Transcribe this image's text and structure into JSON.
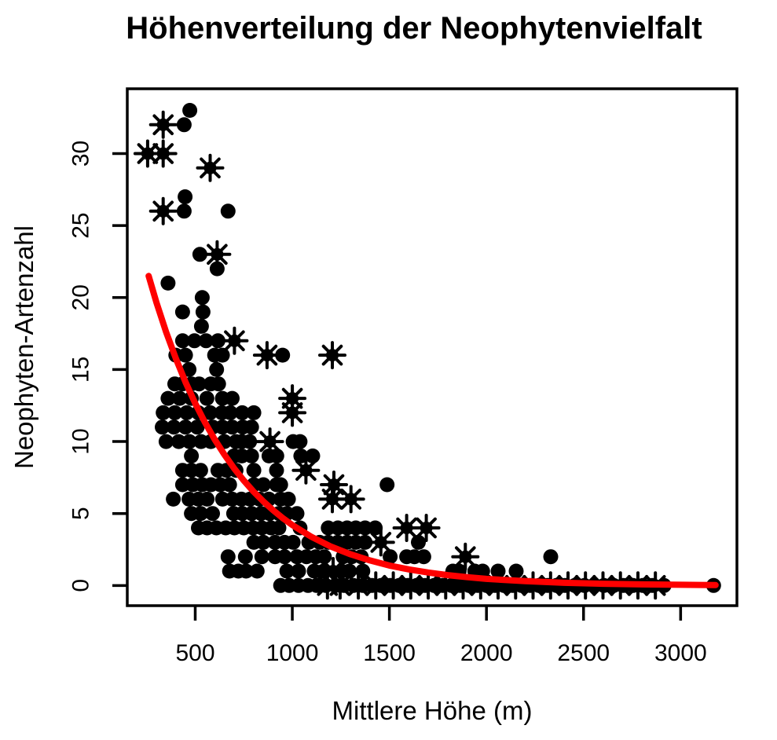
{
  "chart_data": {
    "type": "scatter",
    "title": "Höhenverteilung der Neophytenvielfalt",
    "xlabel": "Mittlere Höhe (m)",
    "ylabel": "Neophyten-Artenzahl",
    "legend": "none",
    "grid": false,
    "xlim": [
      150,
      3290
    ],
    "ylim": [
      -1.4,
      34.5
    ],
    "x_ticks": [
      500,
      1000,
      1500,
      2000,
      2500,
      3000
    ],
    "y_ticks": [
      0,
      5,
      10,
      15,
      20,
      25,
      30
    ],
    "x_tick_labels": [
      "500",
      "1000",
      "1500",
      "2000",
      "2500",
      "3000"
    ],
    "y_tick_labels": [
      "0",
      "5",
      "10",
      "15",
      "20",
      "25",
      "30"
    ],
    "colors": {
      "points": "#000000",
      "starred_points": "#000000",
      "fit_curve": "#FF0000",
      "frame": "#000000",
      "background": "#FFFFFF"
    },
    "series": [
      {
        "name": "plots-circle-markers",
        "marker": "filled-circle",
        "points": [
          [
            472,
            33
          ],
          [
            443,
            32
          ],
          [
            448,
            27
          ],
          [
            443,
            26
          ],
          [
            669,
            26
          ],
          [
            524,
            23
          ],
          [
            613,
            22
          ],
          [
            360,
            21
          ],
          [
            536,
            20
          ],
          [
            435,
            19
          ],
          [
            540,
            19
          ],
          [
            532,
            18
          ],
          [
            435,
            17
          ],
          [
            496,
            17
          ],
          [
            556,
            17
          ],
          [
            617,
            17
          ],
          [
            400,
            16
          ],
          [
            450,
            16
          ],
          [
            600,
            16
          ],
          [
            640,
            16
          ],
          [
            950,
            16
          ],
          [
            468,
            15
          ],
          [
            610,
            15
          ],
          [
            395,
            14
          ],
          [
            435,
            14
          ],
          [
            480,
            14
          ],
          [
            520,
            14
          ],
          [
            580,
            14
          ],
          [
            620,
            14
          ],
          [
            360,
            13
          ],
          [
            420,
            13
          ],
          [
            480,
            13
          ],
          [
            560,
            13
          ],
          [
            640,
            13
          ],
          [
            690,
            13
          ],
          [
            335,
            12
          ],
          [
            395,
            12
          ],
          [
            456,
            12
          ],
          [
            516,
            12
          ],
          [
            577,
            12
          ],
          [
            637,
            12
          ],
          [
            681,
            12
          ],
          [
            742,
            12
          ],
          [
            802,
            12
          ],
          [
            330,
            11
          ],
          [
            390,
            11
          ],
          [
            450,
            11
          ],
          [
            510,
            11
          ],
          [
            590,
            11
          ],
          [
            640,
            11
          ],
          [
            690,
            11
          ],
          [
            745,
            11
          ],
          [
            790,
            11
          ],
          [
            350,
            10
          ],
          [
            415,
            10
          ],
          [
            470,
            10
          ],
          [
            530,
            10
          ],
          [
            580,
            10
          ],
          [
            650,
            10
          ],
          [
            710,
            10
          ],
          [
            740,
            10
          ],
          [
            780,
            10
          ],
          [
            1004,
            10
          ],
          [
            1040,
            10
          ],
          [
            480,
            9
          ],
          [
            700,
            9
          ],
          [
            740,
            9
          ],
          [
            790,
            9
          ],
          [
            880,
            9
          ],
          [
            920,
            9
          ],
          [
            1044,
            9
          ],
          [
            1105,
            9
          ],
          [
            435,
            8
          ],
          [
            480,
            8
          ],
          [
            528,
            8
          ],
          [
            617,
            8
          ],
          [
            661,
            8
          ],
          [
            710,
            8
          ],
          [
            802,
            8
          ],
          [
            919,
            8
          ],
          [
            435,
            7
          ],
          [
            488,
            7
          ],
          [
            536,
            7
          ],
          [
            581,
            7
          ],
          [
            629,
            7
          ],
          [
            677,
            7
          ],
          [
            802,
            7
          ],
          [
            851,
            7
          ],
          [
            919,
            7
          ],
          [
            940,
            7
          ],
          [
            1488,
            7
          ],
          [
            387,
            6
          ],
          [
            468,
            6
          ],
          [
            516,
            6
          ],
          [
            561,
            6
          ],
          [
            641,
            6
          ],
          [
            690,
            6
          ],
          [
            738,
            6
          ],
          [
            782,
            6
          ],
          [
            831,
            6
          ],
          [
            879,
            6
          ],
          [
            940,
            6
          ],
          [
            980,
            6
          ],
          [
            480,
            5
          ],
          [
            528,
            5
          ],
          [
            589,
            5
          ],
          [
            698,
            5
          ],
          [
            742,
            5
          ],
          [
            790,
            5
          ],
          [
            839,
            5
          ],
          [
            883,
            5
          ],
          [
            931,
            5
          ],
          [
            972,
            5
          ],
          [
            1024,
            5
          ],
          [
            516,
            4
          ],
          [
            561,
            4
          ],
          [
            609,
            4
          ],
          [
            657,
            4
          ],
          [
            702,
            4
          ],
          [
            750,
            4
          ],
          [
            798,
            4
          ],
          [
            843,
            4
          ],
          [
            891,
            4
          ],
          [
            931,
            4
          ],
          [
            1040,
            4
          ],
          [
            1185,
            4
          ],
          [
            1235,
            4
          ],
          [
            1282,
            4
          ],
          [
            1327,
            4
          ],
          [
            1375,
            4
          ],
          [
            1427,
            4
          ],
          [
            802,
            3
          ],
          [
            851,
            3
          ],
          [
            911,
            3
          ],
          [
            960,
            3
          ],
          [
            1004,
            3
          ],
          [
            1085,
            3
          ],
          [
            1141,
            3
          ],
          [
            1185,
            3
          ],
          [
            1234,
            3
          ],
          [
            1282,
            3
          ],
          [
            1327,
            3
          ],
          [
            1375,
            3
          ],
          [
            1649,
            3
          ],
          [
            669,
            2
          ],
          [
            758,
            2
          ],
          [
            843,
            2
          ],
          [
            911,
            2
          ],
          [
            960,
            2
          ],
          [
            1024,
            2
          ],
          [
            1073,
            2
          ],
          [
            1121,
            2
          ],
          [
            1165,
            2
          ],
          [
            1262,
            2
          ],
          [
            1306,
            2
          ],
          [
            1355,
            2
          ],
          [
            1504,
            2
          ],
          [
            1589,
            2
          ],
          [
            1629,
            2
          ],
          [
            1677,
            2
          ],
          [
            2331,
            2
          ],
          [
            677,
            1
          ],
          [
            722,
            1
          ],
          [
            762,
            1
          ],
          [
            819,
            1
          ],
          [
            972,
            1
          ],
          [
            1032,
            1
          ],
          [
            1113,
            1
          ],
          [
            1161,
            1
          ],
          [
            1254,
            1
          ],
          [
            1294,
            1
          ],
          [
            1363,
            1
          ],
          [
            1827,
            1
          ],
          [
            1859,
            1
          ],
          [
            1940,
            1
          ],
          [
            1980,
            1
          ],
          [
            2060,
            1
          ],
          [
            2153,
            1
          ],
          [
            940,
            0
          ],
          [
            984,
            0
          ],
          [
            1032,
            0
          ],
          [
            1081,
            0
          ],
          [
            1125,
            0
          ],
          [
            1173,
            0
          ],
          [
            1222,
            0
          ],
          [
            1266,
            0
          ],
          [
            1315,
            0
          ],
          [
            1363,
            0
          ],
          [
            1410,
            0
          ],
          [
            1457,
            0
          ],
          [
            1505,
            0
          ],
          [
            1550,
            0
          ],
          [
            1595,
            0
          ],
          [
            1640,
            0
          ],
          [
            1685,
            0
          ],
          [
            1730,
            0
          ],
          [
            1775,
            0
          ],
          [
            1820,
            0
          ],
          [
            1865,
            0
          ],
          [
            1910,
            0
          ],
          [
            1955,
            0
          ],
          [
            2000,
            0
          ],
          [
            2045,
            0
          ],
          [
            2090,
            0
          ],
          [
            2135,
            0
          ],
          [
            2180,
            0
          ],
          [
            2225,
            0
          ],
          [
            2270,
            0
          ],
          [
            2315,
            0
          ],
          [
            2360,
            0
          ],
          [
            2405,
            0
          ],
          [
            2455,
            0
          ],
          [
            2505,
            0
          ],
          [
            2555,
            0
          ],
          [
            2605,
            0
          ],
          [
            2655,
            0
          ],
          [
            2705,
            0
          ],
          [
            2755,
            0
          ],
          [
            2805,
            0
          ],
          [
            2855,
            0
          ],
          [
            2915,
            0
          ],
          [
            3170,
            0
          ]
        ]
      },
      {
        "name": "plots-starred-markers",
        "marker": "asterisk-circle",
        "points": [
          [
            335,
            32
          ],
          [
            255,
            30
          ],
          [
            335,
            30
          ],
          [
            577,
            29
          ],
          [
            335,
            26
          ],
          [
            613,
            23
          ],
          [
            702,
            17
          ],
          [
            870,
            16
          ],
          [
            1206,
            16
          ],
          [
            1000,
            13
          ],
          [
            1000,
            12
          ],
          [
            885,
            10
          ],
          [
            1070,
            8
          ],
          [
            1214,
            7
          ],
          [
            1206,
            6
          ],
          [
            1302,
            6
          ],
          [
            1589,
            4
          ],
          [
            1690,
            4
          ],
          [
            1456,
            3
          ],
          [
            1891,
            2
          ],
          [
            1210,
            1
          ],
          [
            1181,
            0
          ],
          [
            1246,
            0
          ],
          [
            1340,
            0
          ],
          [
            1430,
            0
          ],
          [
            1520,
            0
          ],
          [
            1610,
            0
          ],
          [
            1700,
            0
          ],
          [
            1790,
            0
          ],
          [
            1880,
            0
          ],
          [
            1970,
            0
          ],
          [
            2060,
            0
          ],
          [
            2150,
            0
          ],
          [
            2240,
            0
          ],
          [
            2330,
            0
          ],
          [
            2420,
            0
          ],
          [
            2510,
            0
          ],
          [
            2600,
            0
          ],
          [
            2690,
            0
          ],
          [
            2780,
            0
          ],
          [
            2870,
            0
          ]
        ]
      }
    ],
    "fit_curve": {
      "name": "exponential-fit-curve",
      "points": [
        [
          260,
          21.5
        ],
        [
          300,
          19.66
        ],
        [
          350,
          17.61
        ],
        [
          400,
          15.77
        ],
        [
          450,
          14.13
        ],
        [
          500,
          12.65
        ],
        [
          550,
          11.33
        ],
        [
          600,
          10.15
        ],
        [
          650,
          9.09
        ],
        [
          700,
          8.14
        ],
        [
          750,
          7.29
        ],
        [
          800,
          6.53
        ],
        [
          850,
          5.85
        ],
        [
          900,
          5.24
        ],
        [
          950,
          4.69
        ],
        [
          1000,
          4.2
        ],
        [
          1100,
          3.37
        ],
        [
          1200,
          2.7
        ],
        [
          1300,
          2.17
        ],
        [
          1400,
          1.74
        ],
        [
          1500,
          1.39
        ],
        [
          1600,
          1.12
        ],
        [
          1700,
          0.9
        ],
        [
          1800,
          0.72
        ],
        [
          1900,
          0.58
        ],
        [
          2000,
          0.46
        ],
        [
          2200,
          0.3
        ],
        [
          2400,
          0.19
        ],
        [
          2600,
          0.12
        ],
        [
          2800,
          0.08
        ],
        [
          3000,
          0.05
        ],
        [
          3180,
          0.03
        ]
      ]
    }
  }
}
